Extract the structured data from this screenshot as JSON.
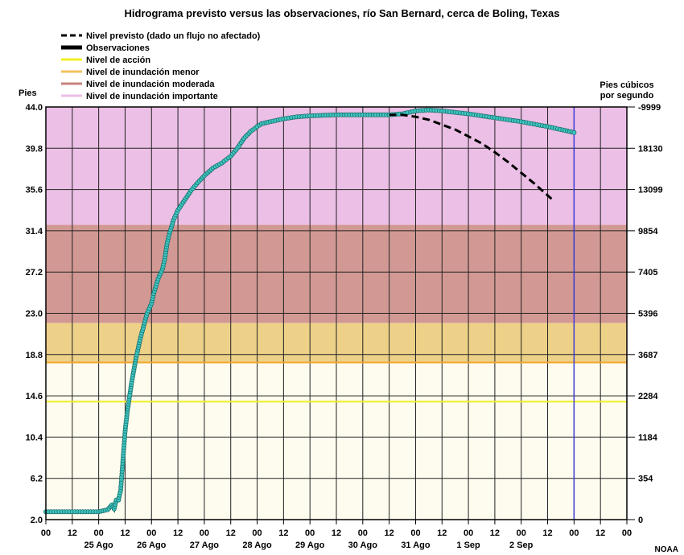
{
  "chart_data": {
    "type": "line",
    "title": "Hidrograma previsto versus las observaciones, río San Bernard, cerca de Boling, Texas",
    "ylabel_left": "Pies",
    "ylabel_right_line1": "Pies cúbicos",
    "ylabel_right_line2": "por segundo",
    "credit": "NOAA",
    "x_unit": "hours since 25 Ago 00:00 (tick labels show hour of day)",
    "xlim": [
      -24,
      240
    ],
    "ylim": [
      2.0,
      44.0
    ],
    "y_ticks": [
      "2.0",
      "6.2",
      "10.4",
      "14.6",
      "18.8",
      "23.0",
      "27.2",
      "31.4",
      "35.6",
      "39.8",
      "44.0"
    ],
    "y_right_ticks": [
      "0",
      "354",
      "1184",
      "2284",
      "3687",
      "5396",
      "7405",
      "9854",
      "13099",
      "18130",
      "-9999"
    ],
    "x_hour_labels": [
      "00",
      "12",
      "00",
      "12",
      "00",
      "12",
      "00",
      "12",
      "00",
      "12",
      "00",
      "12",
      "00",
      "12",
      "00",
      "12",
      "00",
      "12",
      "00",
      "12",
      "00",
      "12",
      "00"
    ],
    "x_date_labels": [
      {
        "label": "25 Ago",
        "x": 0
      },
      {
        "label": "26 Ago",
        "x": 24
      },
      {
        "label": "27 Ago",
        "x": 48
      },
      {
        "label": "28 Ago",
        "x": 72
      },
      {
        "label": "29 Ago",
        "x": 96
      },
      {
        "label": "30 Ago",
        "x": 120
      },
      {
        "label": "31 Ago",
        "x": 144
      },
      {
        "label": "1 Sep",
        "x": 168
      },
      {
        "label": "2 Sep",
        "x": 192
      }
    ],
    "grid": true,
    "bands": [
      {
        "name": "Nivel de inundación importante",
        "from": 32.0,
        "to": 44.0,
        "color": "#ecbfe6"
      },
      {
        "name": "Nivel de inundación moderada",
        "from": 22.0,
        "to": 32.0,
        "color": "#d29994"
      },
      {
        "name": "Nivel de inundación menor",
        "from": 18.0,
        "to": 22.0,
        "color": "#eed189"
      },
      {
        "name": "",
        "from": 2.0,
        "to": 18.0,
        "color": "#fefcef"
      }
    ],
    "lines": [
      {
        "name": "Nivel de acción",
        "y": 14.0,
        "color": "#f2ef24"
      },
      {
        "name": "Nivel de inundación menor",
        "y": 18.0,
        "color": "#f0a52a"
      }
    ],
    "legend": [
      {
        "label": "Nivel previsto (dado un flujo no afectado)",
        "style": "dash",
        "color": "#000000"
      },
      {
        "label": "Observaciones",
        "style": "thick",
        "color": "#000000"
      },
      {
        "label": "Nivel de acción",
        "style": "line",
        "color": "#f2ef24"
      },
      {
        "label": "Nivel de inundación menor",
        "style": "line",
        "color": "#f0c060"
      },
      {
        "label": "Nivel de inundación moderada",
        "style": "line",
        "color": "#c8837e"
      },
      {
        "label": "Nivel de inundación importante",
        "style": "line",
        "color": "#ecbfe6"
      }
    ],
    "legend_position": "top-left",
    "series": [
      {
        "name": "Observaciones",
        "style": "markers",
        "color": "#3ec9c4",
        "points": [
          [
            -24,
            2.8
          ],
          [
            -12,
            2.8
          ],
          [
            0,
            2.8
          ],
          [
            4,
            3.0
          ],
          [
            6,
            3.5
          ],
          [
            7,
            3.1
          ],
          [
            8,
            4.0
          ],
          [
            9,
            4.0
          ],
          [
            10,
            5.0
          ],
          [
            11,
            8.0
          ],
          [
            12,
            11.0
          ],
          [
            13,
            13.0
          ],
          [
            15,
            16.0
          ],
          [
            17,
            18.5
          ],
          [
            19,
            20.5
          ],
          [
            22,
            23.0
          ],
          [
            24,
            24.0
          ],
          [
            25,
            25.0
          ],
          [
            27,
            26.5
          ],
          [
            29,
            27.5
          ],
          [
            30,
            28.5
          ],
          [
            31,
            30.0
          ],
          [
            32,
            31.0
          ],
          [
            34,
            32.5
          ],
          [
            36,
            33.5
          ],
          [
            39,
            34.5
          ],
          [
            42,
            35.5
          ],
          [
            45,
            36.3
          ],
          [
            48,
            37.0
          ],
          [
            52,
            37.8
          ],
          [
            56,
            38.3
          ],
          [
            60,
            39.0
          ],
          [
            63,
            39.8
          ],
          [
            66,
            40.8
          ],
          [
            69,
            41.5
          ],
          [
            72,
            42.0
          ],
          [
            74,
            42.3
          ],
          [
            78,
            42.5
          ],
          [
            84,
            42.8
          ],
          [
            90,
            43.0
          ],
          [
            96,
            43.1
          ],
          [
            108,
            43.2
          ],
          [
            120,
            43.2
          ],
          [
            132,
            43.2
          ],
          [
            138,
            43.3
          ],
          [
            144,
            43.6
          ],
          [
            150,
            43.7
          ],
          [
            156,
            43.6
          ],
          [
            168,
            43.3
          ],
          [
            180,
            42.9
          ],
          [
            192,
            42.5
          ],
          [
            204,
            42.0
          ],
          [
            212,
            41.6
          ],
          [
            216,
            41.4
          ]
        ]
      },
      {
        "name": "Nivel previsto (dado un flujo no afectado)",
        "style": "dash",
        "color": "#000000",
        "points": [
          [
            132,
            43.2
          ],
          [
            138,
            43.2
          ],
          [
            144,
            43.0
          ],
          [
            150,
            42.7
          ],
          [
            156,
            42.2
          ],
          [
            162,
            41.7
          ],
          [
            168,
            41.0
          ],
          [
            174,
            40.3
          ],
          [
            180,
            39.4
          ],
          [
            186,
            38.4
          ],
          [
            192,
            37.3
          ],
          [
            198,
            36.2
          ],
          [
            204,
            35.0
          ],
          [
            207,
            34.4
          ]
        ]
      }
    ],
    "current_time_marker_x": 216
  }
}
